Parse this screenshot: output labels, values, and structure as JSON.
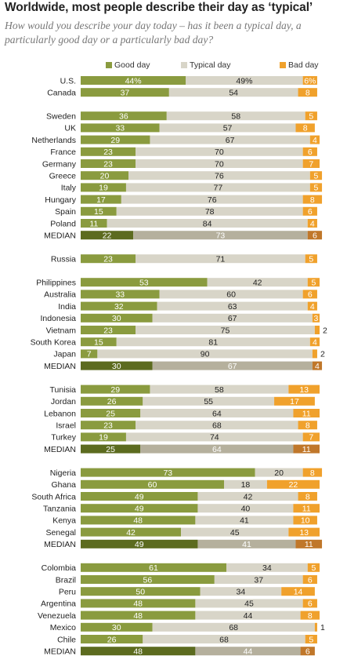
{
  "title": "Worldwide, most people describe their day as ‘typical’",
  "subtitle": "How would you describe your day today – has it been a typical day, a particularly good day or a particularly bad day?",
  "colors": {
    "good": "#8a9b3f",
    "typical": "#d8d5c8",
    "bad": "#f0a12c",
    "good_median": "#5c6b1f",
    "typical_median": "#b5b09d",
    "bad_median": "#c0772a"
  },
  "legend": [
    {
      "key": "good",
      "label": "Good day"
    },
    {
      "key": "typical",
      "label": "Typical day"
    },
    {
      "key": "bad",
      "label": "Bad day"
    }
  ],
  "chart_data": {
    "type": "bar",
    "stacked": true,
    "orientation": "horizontal",
    "series": [
      {
        "name": "Good day",
        "key": "good"
      },
      {
        "name": "Typical day",
        "key": "typical"
      },
      {
        "name": "Bad day",
        "key": "bad"
      }
    ],
    "groups": [
      {
        "rows": [
          {
            "label": "U.S.",
            "good": 44,
            "typical": 49,
            "bad": 6,
            "good_text": "44%",
            "typical_text": "49%",
            "bad_text": "6%"
          },
          {
            "label": "Canada",
            "good": 37,
            "typical": 54,
            "bad": 8
          }
        ]
      },
      {
        "rows": [
          {
            "label": "Sweden",
            "good": 36,
            "typical": 58,
            "bad": 5
          },
          {
            "label": "UK",
            "good": 33,
            "typical": 57,
            "bad": 8
          },
          {
            "label": "Netherlands",
            "good": 29,
            "typical": 67,
            "bad": 4
          },
          {
            "label": "France",
            "good": 23,
            "typical": 70,
            "bad": 6
          },
          {
            "label": "Germany",
            "good": 23,
            "typical": 70,
            "bad": 7
          },
          {
            "label": "Greece",
            "good": 20,
            "typical": 76,
            "bad": 5
          },
          {
            "label": "Italy",
            "good": 19,
            "typical": 77,
            "bad": 5
          },
          {
            "label": "Hungary",
            "good": 17,
            "typical": 76,
            "bad": 8
          },
          {
            "label": "Spain",
            "good": 15,
            "typical": 78,
            "bad": 6
          },
          {
            "label": "Poland",
            "good": 11,
            "typical": 84,
            "bad": 4
          },
          {
            "label": "MEDIAN",
            "median": true,
            "good": 22,
            "typical": 73,
            "bad": 6
          }
        ]
      },
      {
        "rows": [
          {
            "label": "Russia",
            "good": 23,
            "typical": 71,
            "bad": 5
          }
        ]
      },
      {
        "rows": [
          {
            "label": "Philippines",
            "good": 53,
            "typical": 42,
            "bad": 5
          },
          {
            "label": "Australia",
            "good": 33,
            "typical": 60,
            "bad": 6
          },
          {
            "label": "India",
            "good": 32,
            "typical": 63,
            "bad": 4
          },
          {
            "label": "Indonesia",
            "good": 30,
            "typical": 67,
            "bad": 3
          },
          {
            "label": "Vietnam",
            "good": 23,
            "typical": 75,
            "bad": 2
          },
          {
            "label": "South Korea",
            "good": 15,
            "typical": 81,
            "bad": 4
          },
          {
            "label": "Japan",
            "good": 7,
            "typical": 90,
            "bad": 2
          },
          {
            "label": "MEDIAN",
            "median": true,
            "good": 30,
            "typical": 67,
            "bad": 4
          }
        ]
      },
      {
        "rows": [
          {
            "label": "Tunisia",
            "good": 29,
            "typical": 58,
            "bad": 13
          },
          {
            "label": "Jordan",
            "good": 26,
            "typical": 55,
            "bad": 17
          },
          {
            "label": "Lebanon",
            "good": 25,
            "typical": 64,
            "bad": 11
          },
          {
            "label": "Israel",
            "good": 23,
            "typical": 68,
            "bad": 8
          },
          {
            "label": "Turkey",
            "good": 19,
            "typical": 74,
            "bad": 7
          },
          {
            "label": "MEDIAN",
            "median": true,
            "good": 25,
            "typical": 64,
            "bad": 11
          }
        ]
      },
      {
        "rows": [
          {
            "label": "Nigeria",
            "good": 73,
            "typical": 20,
            "bad": 8
          },
          {
            "label": "Ghana",
            "good": 60,
            "typical": 18,
            "bad": 22
          },
          {
            "label": "South Africa",
            "good": 49,
            "typical": 42,
            "bad": 8
          },
          {
            "label": "Tanzania",
            "good": 49,
            "typical": 40,
            "bad": 11
          },
          {
            "label": "Kenya",
            "good": 48,
            "typical": 41,
            "bad": 10
          },
          {
            "label": "Senegal",
            "good": 42,
            "typical": 45,
            "bad": 13
          },
          {
            "label": "MEDIAN",
            "median": true,
            "good": 49,
            "typical": 41,
            "bad": 11
          }
        ]
      },
      {
        "rows": [
          {
            "label": "Colombia",
            "good": 61,
            "typical": 34,
            "bad": 5
          },
          {
            "label": "Brazil",
            "good": 56,
            "typical": 37,
            "bad": 6
          },
          {
            "label": "Peru",
            "good": 50,
            "typical": 34,
            "bad": 14
          },
          {
            "label": "Argentina",
            "good": 48,
            "typical": 45,
            "bad": 6
          },
          {
            "label": "Venezuela",
            "good": 48,
            "typical": 44,
            "bad": 8
          },
          {
            "label": "Mexico",
            "good": 30,
            "typical": 68,
            "bad": 1
          },
          {
            "label": "Chile",
            "good": 26,
            "typical": 68,
            "bad": 5
          },
          {
            "label": "MEDIAN",
            "median": true,
            "good": 48,
            "typical": 44,
            "bad": 6
          }
        ]
      }
    ]
  }
}
